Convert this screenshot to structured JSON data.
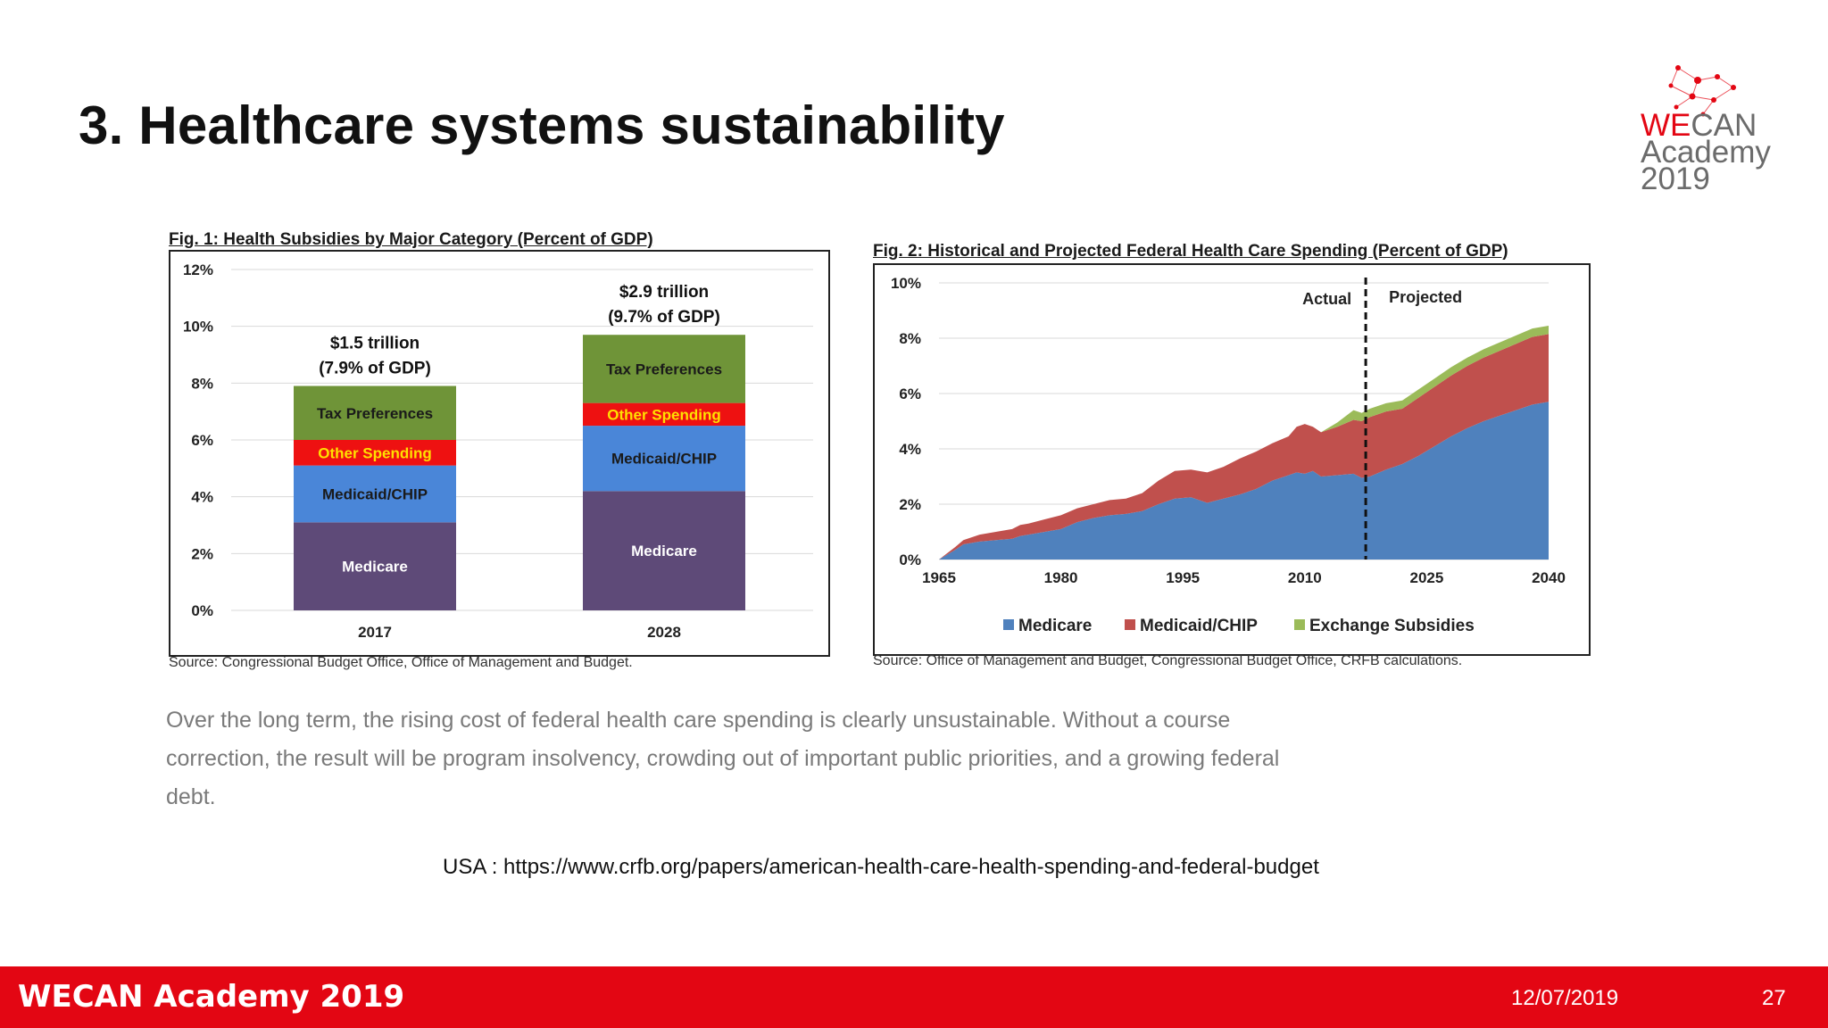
{
  "slide": {
    "title": "3. Healthcare systems sustainability",
    "quote": "Over the long term, the rising cost of federal health care spending is clearly unsustainable. Without a course correction, the result will be program insolvency, crowding out of important public priorities, and a growing federal debt.",
    "url_text": "USA : https://www.crfb.org/papers/american-health-care-health-spending-and-federal-budget"
  },
  "logo": {
    "line1_accent": "WE",
    "line1_rest": "CAN",
    "line2": "Academy",
    "line3": "2019"
  },
  "footer": {
    "brand": "WECAN Academy 2019",
    "date": "12/07/2019",
    "page": "27"
  },
  "colors": {
    "footer_red": "#e30613",
    "medicare_purple": "#5e4a78",
    "medicaid_blue": "#4a86d8",
    "other_red": "#ee1111",
    "tax_green": "#6f9438",
    "fig2_medicare": "#4f81bd",
    "fig2_medicaid": "#c0504d",
    "fig2_exchange": "#9bbb59"
  },
  "chart_data": [
    {
      "type": "bar",
      "stacked": true,
      "title": "Fig. 1: Health Subsidies by Major Category (Percent of GDP)",
      "source": "Source: Congressional Budget Office, Office of Management and Budget.",
      "categories": [
        "2017",
        "2028"
      ],
      "ylim": [
        0,
        12
      ],
      "yticks": [
        0,
        2,
        4,
        6,
        8,
        10,
        12
      ],
      "ytick_labels": [
        "0%",
        "2%",
        "4%",
        "6%",
        "8%",
        "10%",
        "12%"
      ],
      "grid": true,
      "series": [
        {
          "name": "Medicare",
          "values": [
            3.1,
            4.2
          ],
          "color": "#5e4a78"
        },
        {
          "name": "Medicaid/CHIP",
          "values": [
            2.0,
            2.3
          ],
          "color": "#4a86d8"
        },
        {
          "name": "Other Spending",
          "values": [
            0.9,
            0.8
          ],
          "color": "#ee1111"
        },
        {
          "name": "Tax Preferences",
          "values": [
            1.9,
            2.4
          ],
          "color": "#6f9438"
        }
      ],
      "totals": [
        {
          "line1": "$1.5 trillion",
          "line2": "(7.9% of GDP)"
        },
        {
          "line1": "$2.9 trillion",
          "line2": "(9.7% of GDP)"
        }
      ]
    },
    {
      "type": "area",
      "stacked": true,
      "title": "Fig. 2: Historical and Projected Federal Health Care Spending (Percent of GDP)",
      "source": "Source: Office of Management and Budget, Congressional Budget Office, CRFB calculations.",
      "xlim": [
        1965,
        2040
      ],
      "ylim": [
        0,
        10
      ],
      "xticks": [
        1965,
        1980,
        1995,
        2010,
        2025,
        2040
      ],
      "yticks": [
        0,
        2,
        4,
        6,
        8,
        10
      ],
      "ytick_labels": [
        "0%",
        "2%",
        "4%",
        "6%",
        "8%",
        "10%"
      ],
      "grid": true,
      "legend_position": "bottom",
      "divider": {
        "x": 2017.5,
        "left_label": "Actual",
        "right_label": "Projected"
      },
      "x": [
        1965,
        1967,
        1968,
        1970,
        1972,
        1974,
        1975,
        1976,
        1978,
        1980,
        1982,
        1984,
        1986,
        1988,
        1990,
        1992,
        1994,
        1996,
        1998,
        2000,
        2002,
        2004,
        2006,
        2008,
        2009,
        2010,
        2011,
        2012,
        2014,
        2016,
        2017,
        2018,
        2020,
        2022,
        2024,
        2026,
        2028,
        2030,
        2032,
        2034,
        2036,
        2038,
        2040
      ],
      "series": [
        {
          "name": "Medicare",
          "color": "#4f81bd",
          "values": [
            0.0,
            0.35,
            0.55,
            0.65,
            0.7,
            0.75,
            0.85,
            0.9,
            1.0,
            1.1,
            1.35,
            1.5,
            1.6,
            1.65,
            1.75,
            2.0,
            2.2,
            2.25,
            2.05,
            2.2,
            2.35,
            2.55,
            2.85,
            3.05,
            3.15,
            3.1,
            3.2,
            3.0,
            3.05,
            3.1,
            2.95,
            3.0,
            3.25,
            3.45,
            3.75,
            4.1,
            4.45,
            4.75,
            5.0,
            5.2,
            5.4,
            5.6,
            5.7
          ]
        },
        {
          "name": "Medicaid/CHIP",
          "color": "#c0504d",
          "values": [
            0.0,
            0.1,
            0.15,
            0.25,
            0.3,
            0.35,
            0.4,
            0.4,
            0.45,
            0.5,
            0.5,
            0.5,
            0.55,
            0.55,
            0.65,
            0.85,
            1.0,
            1.0,
            1.1,
            1.15,
            1.3,
            1.35,
            1.35,
            1.4,
            1.65,
            1.8,
            1.6,
            1.6,
            1.75,
            1.95,
            2.05,
            2.15,
            2.1,
            2.0,
            2.1,
            2.15,
            2.2,
            2.25,
            2.3,
            2.35,
            2.4,
            2.45,
            2.45
          ]
        },
        {
          "name": "Exchange Subsidies",
          "color": "#9bbb59",
          "values": [
            0,
            0,
            0,
            0,
            0,
            0,
            0,
            0,
            0,
            0,
            0,
            0,
            0,
            0,
            0,
            0,
            0,
            0,
            0,
            0,
            0,
            0,
            0,
            0,
            0,
            0,
            0,
            0,
            0.15,
            0.35,
            0.3,
            0.3,
            0.3,
            0.3,
            0.3,
            0.3,
            0.3,
            0.3,
            0.3,
            0.3,
            0.3,
            0.3,
            0.3
          ]
        }
      ]
    }
  ]
}
